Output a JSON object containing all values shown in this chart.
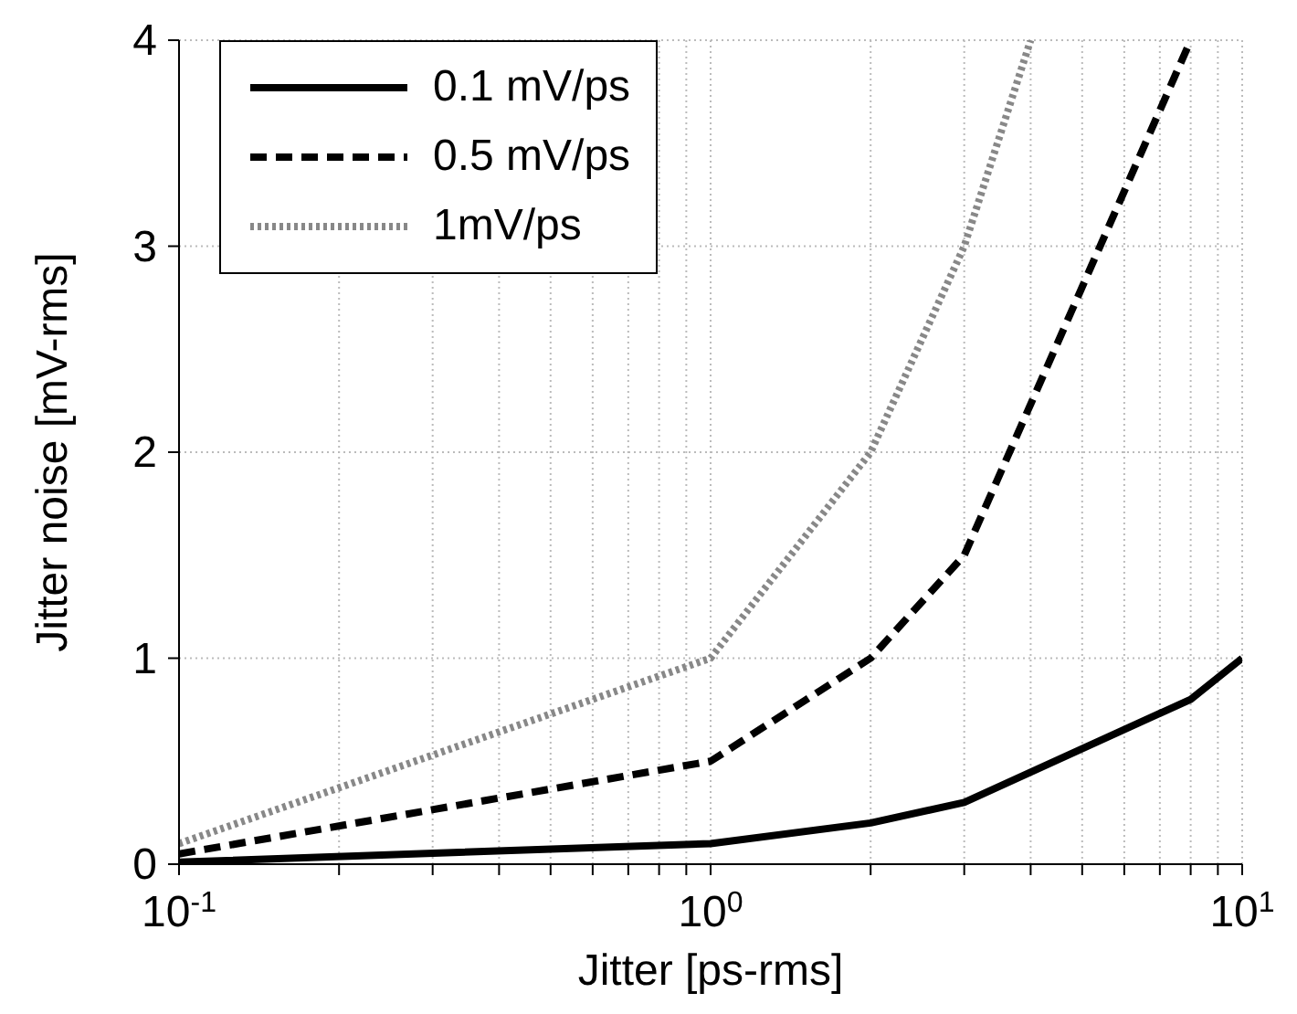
{
  "chart_data": {
    "type": "line",
    "xlabel": "Jitter [ps-rms]",
    "ylabel": "Jitter noise [mV-rms]",
    "log": "x",
    "grid": true,
    "legend": "top left",
    "xlim": [
      0.1,
      10
    ],
    "ylim": [
      0,
      4
    ],
    "xticks": [
      {
        "value": 0.1,
        "label": "10$^{-1}$"
      },
      {
        "value": 0.2,
        "label": null
      },
      {
        "value": 0.3,
        "label": null
      },
      {
        "value": 0.4,
        "label": null
      },
      {
        "value": 0.5,
        "label": null
      },
      {
        "value": 0.6,
        "label": null
      },
      {
        "value": 0.7,
        "label": null
      },
      {
        "value": 0.8,
        "label": null
      },
      {
        "value": 0.9,
        "label": null
      },
      {
        "value": 1,
        "label": "10$^{0}$"
      },
      {
        "value": 2,
        "label": null
      },
      {
        "value": 3,
        "label": null
      },
      {
        "value": 4,
        "label": null
      },
      {
        "value": 5,
        "label": null
      },
      {
        "value": 6,
        "label": null
      },
      {
        "value": 7,
        "label": null
      },
      {
        "value": 8,
        "label": null
      },
      {
        "value": 9,
        "label": null
      },
      {
        "value": 10,
        "label": "10$^{1}$"
      }
    ],
    "yticks": [
      0,
      1,
      2,
      3,
      4
    ],
    "series": [
      {
        "name": "0.1 mV/ps",
        "color": "#000000",
        "line_style": "solid",
        "x": [
          0.1,
          1,
          2,
          3,
          8,
          10
        ],
        "values": [
          0.01,
          0.1,
          0.2,
          0.3,
          0.8,
          1
        ]
      },
      {
        "name": "0.5 mV/ps",
        "color": "#000000",
        "line_style": "dashed",
        "x": [
          0.1,
          1,
          2,
          3,
          8
        ],
        "values": [
          0.05,
          0.5,
          1,
          1.5,
          4
        ]
      },
      {
        "name": "1mV/ps",
        "color": "#888888",
        "line_style": "dotted",
        "x": [
          0.1,
          1,
          2,
          3,
          4
        ],
        "values": [
          0.1,
          1,
          2,
          3,
          4
        ]
      }
    ]
  }
}
